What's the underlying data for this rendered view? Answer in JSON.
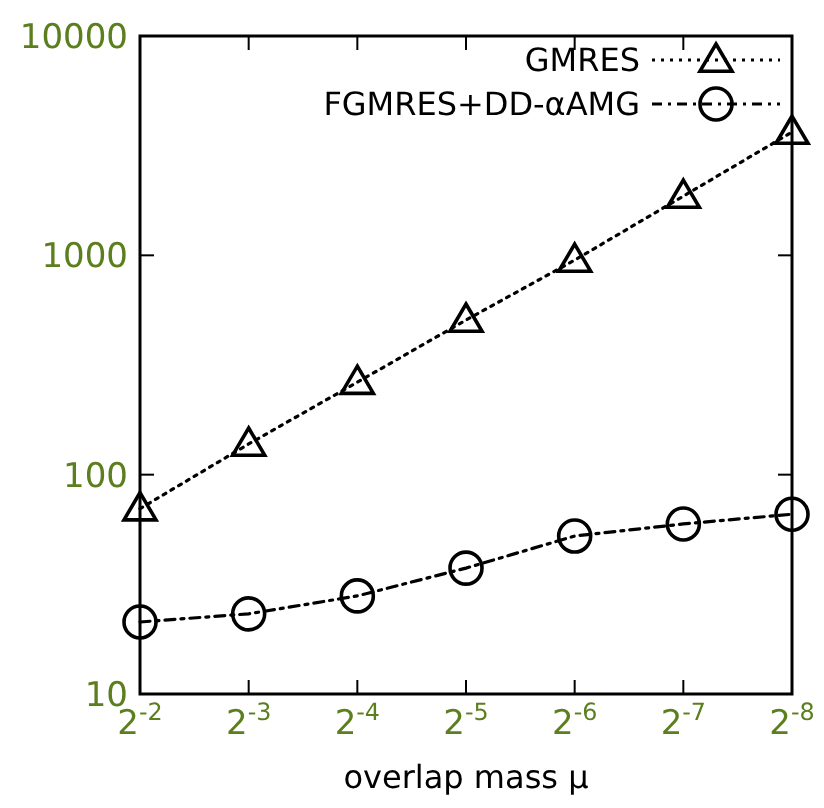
{
  "chart_data": {
    "type": "line",
    "xlabel": "overlap mass μ",
    "categories": [
      "2$^{-2}$",
      "2$^{-3}$",
      "2$^{-4}$",
      "2$^{-5}$",
      "2$^{-6}$",
      "2$^{-7}$",
      "2$^{-8}$"
    ],
    "series": [
      {
        "name": "GMRES",
        "color": "#000000",
        "marker": "triangle",
        "line_style": "dotted",
        "values": [
          70,
          138,
          264,
          507,
          951,
          1862,
          3646
        ]
      },
      {
        "name": "FGMRES+DD-αAMG",
        "color": "#000000",
        "marker": "circle",
        "line_style": "dashed",
        "values": [
          21.3,
          23.2,
          28,
          37.5,
          52.5,
          59.6,
          66
        ]
      }
    ],
    "log": "y",
    "ylim": [
      10,
      10000
    ],
    "yticks": [
      10,
      100,
      1000,
      10000
    ],
    "legend": "top right",
    "grid": false
  }
}
